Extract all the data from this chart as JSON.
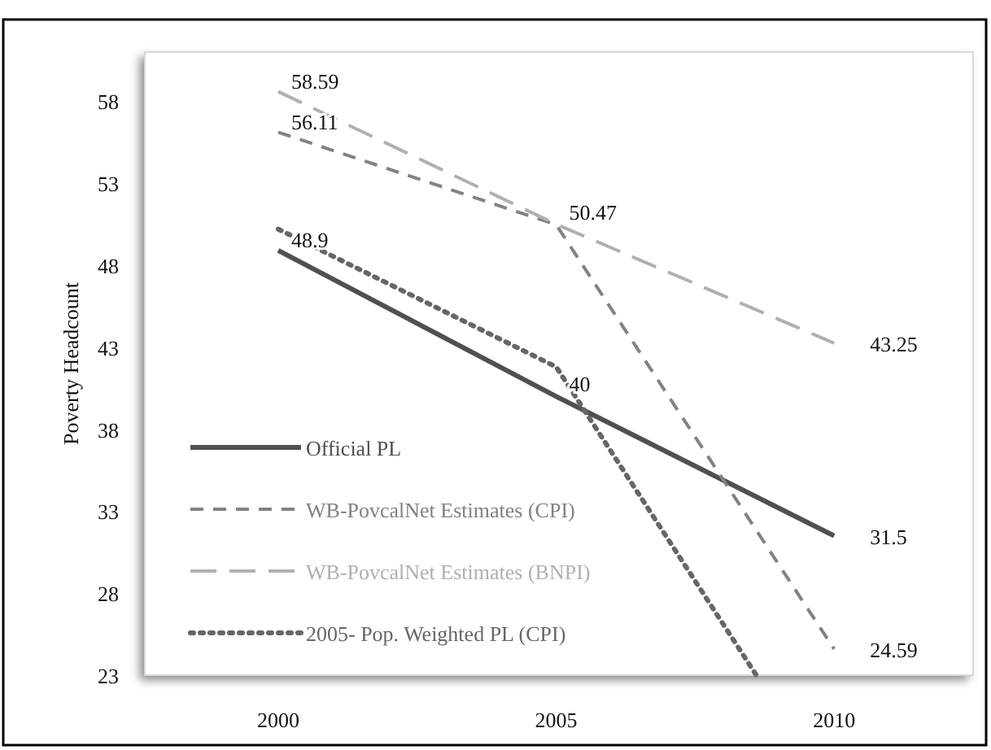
{
  "chart_data": {
    "type": "line",
    "ylabel": "Poverty Headcount",
    "x": [
      2000,
      2005,
      2010
    ],
    "xlim": [
      1997.6,
      2012.5
    ],
    "xticks": [
      2000,
      2005,
      2010
    ],
    "ylim": [
      23,
      61
    ],
    "yticks": [
      23,
      28,
      33,
      38,
      43,
      48,
      53,
      58
    ],
    "grid": false,
    "legend": "bottom left",
    "marker": "none",
    "series": [
      {
        "name": "Official PL",
        "color": "#505050",
        "line_style": "solid",
        "values": [
          48.9,
          40,
          31.5
        ],
        "value_labels": [
          "48.9",
          "40",
          "31.5"
        ]
      },
      {
        "name": "WB-PovcalNet Estimates (CPI)",
        "color": "#828282",
        "line_style": "dashed",
        "values": [
          56.11,
          50.47,
          24.59
        ],
        "value_labels": [
          "56.11",
          "50.47",
          "24.59"
        ]
      },
      {
        "name": "WB-PovcalNet Estimates (BNPI)",
        "color": "#b0b0b0",
        "line_style": "dashed",
        "values": [
          58.59,
          50.5,
          43.25
        ],
        "value_labels": [
          "58.59",
          null,
          "43.25"
        ]
      },
      {
        "name": "2005- Pop. Weighted PL (CPI)",
        "color": "#666666",
        "line_style": "dotted",
        "x": [
          2000,
          2005,
          2008.6
        ],
        "values": [
          50.2,
          41.8,
          23
        ]
      }
    ]
  }
}
